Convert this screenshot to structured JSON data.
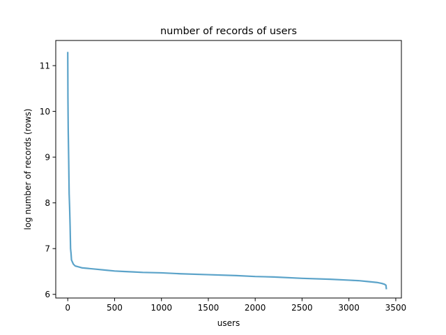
{
  "chart_data": {
    "type": "line",
    "title": "number of records of users",
    "xlabel": "users",
    "ylabel": "log number of records (rows)",
    "xlim": [
      -128,
      3560
    ],
    "ylim": [
      5.92,
      11.55
    ],
    "xticks": [
      0,
      500,
      1000,
      1500,
      2000,
      2500,
      3000,
      3500
    ],
    "yticks": [
      6,
      7,
      8,
      9,
      10,
      11
    ],
    "grid": false,
    "series": [
      {
        "color": "#5ba3c9",
        "x": [
          0,
          2,
          5,
          10,
          15,
          20,
          25,
          30,
          35,
          40,
          60,
          80,
          100,
          150,
          200,
          300,
          400,
          500,
          600,
          700,
          800,
          1000,
          1200,
          1500,
          1800,
          2000,
          2200,
          2500,
          2800,
          3000,
          3100,
          3200,
          3300,
          3350,
          3380,
          3395,
          3400
        ],
        "y": [
          11.3,
          10.3,
          9.6,
          8.95,
          8.2,
          7.9,
          7.5,
          7.0,
          6.9,
          6.75,
          6.66,
          6.62,
          6.61,
          6.58,
          6.57,
          6.55,
          6.53,
          6.51,
          6.5,
          6.49,
          6.48,
          6.47,
          6.45,
          6.43,
          6.41,
          6.39,
          6.38,
          6.35,
          6.33,
          6.31,
          6.3,
          6.28,
          6.26,
          6.24,
          6.22,
          6.2,
          6.11
        ]
      }
    ]
  }
}
